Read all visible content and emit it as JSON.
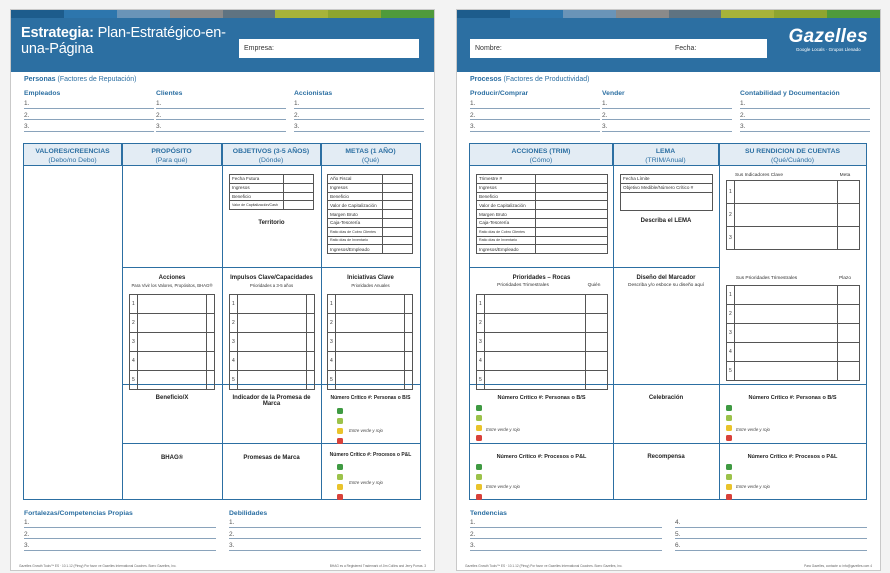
{
  "colors": {
    "header": "#2c6fa2",
    "stripe": [
      "#1d5c8c",
      "#2d76ad",
      "#6a94b8",
      "#8a8a8a",
      "#5f7381",
      "#a7b339",
      "#8ea52f",
      "#4f9a3b"
    ],
    "green": "#3f9a42",
    "lime": "#9cc24a",
    "yellow": "#e9c32b",
    "red": "#d9413a"
  },
  "left": {
    "title_bold": "Estrategia:",
    "title_rest": "Plan-Estratégico-en-una-Página",
    "empresa_label": "Empresa:",
    "personas_title": "Personas",
    "personas_sub": "(Factores de Reputación)",
    "groups": [
      "Empleados",
      "Clientes",
      "Accionistas"
    ],
    "nums": [
      "1.",
      "2.",
      "3."
    ],
    "headers": [
      {
        "t": "VALORES/CREENCIAS",
        "s": "(Debo/no Debo)"
      },
      {
        "t": "PROPÓSITO",
        "s": "(Para qué)"
      },
      {
        "t": "OBJETIVOS (3-5 AÑOS)",
        "s": "(Dónde)"
      },
      {
        "t": "METAS (1 AÑO)",
        "s": "(Qué)"
      }
    ],
    "obj_rows": [
      "Fecha Futura",
      "Ingresos",
      "Beneficio",
      "Valor de Capitalización/Cash"
    ],
    "meta_rows": [
      "Año Fiscal",
      "Ingresos",
      "Beneficio",
      "Valor de Capitalización",
      "Margen Bruto",
      "Caja-Tesorería",
      "Ratio días de Cobro Clientes",
      "Ratio días de Inventario",
      "Ingresos/Empleado"
    ],
    "territorio": "Territorio",
    "acciones": "Acciones",
    "acciones_sub": "Para Vivir los Valores, Propósitos, BHAG®",
    "impulsos": "Impulsos Clave/Capacidades",
    "impulsos_sub": "Prioridades a 3-5 años",
    "iniciativas": "Iniciativas Clave",
    "iniciativas_sub": "Prioridades Anuales",
    "rows5": [
      "1",
      "2",
      "3",
      "4",
      "5"
    ],
    "beneficio": "Beneficio/X",
    "indicador": "Indicador de la Promesa de Marca",
    "critico1": "Número Crítico #: Personas o B/S",
    "entre": "Entre verde y rojo",
    "bhag": "BHAG®",
    "promesas": "Promesas de Marca",
    "critico2": "Número Crítico #: Procesos o P&L",
    "fortalezas": "Fortalezas/Competencias Propias",
    "debilidades": "Debilidades",
    "footer_a": "Gazelles Growth Tools™ ES · 10.1.12 (Pirwy)   Por favor ve Gazelles International Coaches. Borro Gazelles, Inc.",
    "footer_b": "BHAG es a Registered Trademark of Jim Collins and Jerry Porras.   3"
  },
  "right": {
    "nombre_label": "Nombre:",
    "fecha_label": "Fecha:",
    "logo": "Gazelles",
    "logo_sub": "Google Locals · Grupos Llenado",
    "procesos_title": "Procesos",
    "procesos_sub": "(Factores de Productividad)",
    "groups": [
      "Producir/Comprar",
      "Vender",
      "Contabilidad y Documentación"
    ],
    "nums": [
      "1.",
      "2.",
      "3."
    ],
    "headers": [
      {
        "t": "ACCIONES (TRIM)",
        "s": "(Cómo)"
      },
      {
        "t": "LEMA",
        "s": "(TRIM/Anual)"
      },
      {
        "t": "SU RENDICION DE CUENTAS",
        "s": "(Qué/Cuándo)"
      }
    ],
    "acc_rows": [
      "Trimestre #",
      "Ingresos",
      "Beneficio",
      "Valor de Capitalización",
      "Margen Bruto",
      "Caja-Tesorería",
      "Ratio días de Cobro Clientes",
      "Ratio días de Inventario",
      "Ingresos/Empleado"
    ],
    "lema_rows": [
      "Fecha Límite",
      "Objetivo Medible/Número Crítico #"
    ],
    "describa": "Describa el LEMA",
    "indicadores": "Sus Indicadores Clave",
    "meta": "Meta",
    "prioridades": "Prioridades – Rocas",
    "prio_trim": "Prioridades Trimestrales",
    "quien": "Quién",
    "diseno": "Diseño del Marcador",
    "diseno_sub": "Describa y/o esboce su diseño aquí",
    "sus_prio": "Sus Prioridades Trimestrales",
    "plazo": "Plazo",
    "rows3": [
      "1",
      "2",
      "3"
    ],
    "rows5": [
      "1",
      "2",
      "3",
      "4",
      "5"
    ],
    "critico1": "Número Crítico #: Personas o B/S",
    "celebracion": "Celebración",
    "entre": "Entre verde y rojo",
    "critico2": "Número Crítico #: Procesos o P&L",
    "recompensa": "Recompensa",
    "tendencias": "Tendencias",
    "nums6": [
      "1.",
      "2.",
      "3.",
      "4.",
      "5.",
      "6."
    ],
    "footer_a": "Gazelles Growth Tools™ ES · 10.1.12 (Pirwy)   Por favor ve Gazelles International Coaches. Borro Gazelles, Inc.",
    "footer_b": "Para Gazelles, contacte a: info@gazelles.com   4"
  }
}
